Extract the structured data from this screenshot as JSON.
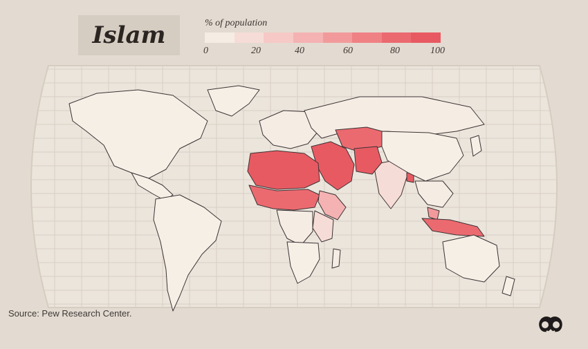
{
  "title": "Islam",
  "legend": {
    "title": "% of population",
    "ticks": [
      "0",
      "20",
      "40",
      "60",
      "80",
      "100"
    ],
    "colors": [
      "#f5ede4",
      "#f6dcd6",
      "#f6c9c6",
      "#f5b2b2",
      "#f29a9b",
      "#ef8185",
      "#eb6a70",
      "#e85a62"
    ]
  },
  "source": "Source: Pew Research Center.",
  "colors": {
    "background": "#e3dbd1",
    "ocean": "#ebe5dc",
    "graticule": "#d8cfc3",
    "border": "#3b3234"
  },
  "map": {
    "projection": "robinson-like",
    "regions": [
      {
        "name": "North America",
        "share": 1
      },
      {
        "name": "Greenland",
        "share": 0
      },
      {
        "name": "Central America",
        "share": 0
      },
      {
        "name": "South America",
        "share": 0
      },
      {
        "name": "Europe",
        "share": 5
      },
      {
        "name": "Russia",
        "share": 12
      },
      {
        "name": "Central Asia",
        "share": 85
      },
      {
        "name": "Middle East",
        "share": 92
      },
      {
        "name": "North Africa",
        "share": 97
      },
      {
        "name": "Sahel",
        "share": 75
      },
      {
        "name": "Horn of Africa",
        "share": 45
      },
      {
        "name": "East Africa",
        "share": 20
      },
      {
        "name": "Central Africa",
        "share": 5
      },
      {
        "name": "Southern Africa",
        "share": 2
      },
      {
        "name": "Madagascar",
        "share": 3
      },
      {
        "name": "South Asia",
        "share": 15
      },
      {
        "name": "Pakistan / Afghanistan",
        "share": 97
      },
      {
        "name": "Bangladesh",
        "share": 90
      },
      {
        "name": "China / Mongolia",
        "share": 2
      },
      {
        "name": "Southeast Asia",
        "share": 5
      },
      {
        "name": "Malaysia",
        "share": 61
      },
      {
        "name": "Indonesia",
        "share": 87
      },
      {
        "name": "Australia",
        "share": 2
      },
      {
        "name": "New Zealand",
        "share": 1
      },
      {
        "name": "Japan",
        "share": 0
      }
    ]
  },
  "logo_icon": "publisher-logo-icon"
}
